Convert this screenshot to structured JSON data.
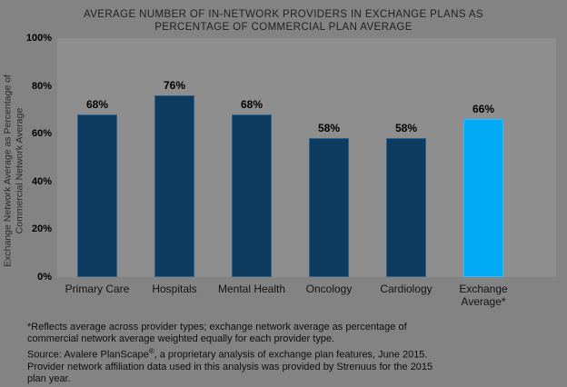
{
  "title": {
    "line1": "AVERAGE NUMBER OF IN-NETWORK PROVIDERS IN EXCHANGE PLANS AS",
    "line2": "PERCENTAGE OF COMMERCIAL PLAN AVERAGE"
  },
  "chart_data": {
    "type": "bar",
    "title": "AVERAGE NUMBER OF IN-NETWORK PROVIDERS IN EXCHANGE PLANS AS PERCENTAGE OF COMMERCIAL PLAN AVERAGE",
    "categories": [
      "Primary Care",
      "Hospitals",
      "Mental Health",
      "Oncology",
      "Cardiology",
      "Exchange Average*"
    ],
    "values": [
      68,
      76,
      68,
      58,
      58,
      66
    ],
    "unit": "%",
    "highlight_index": 5,
    "ylabel": "Exchange Network Average as Percentage of Commercial Network Average",
    "ylabel_lines": [
      "Exchange Network Average as Percentage of",
      "Commercial Network Average"
    ],
    "xlabel": "",
    "ylim": [
      0,
      100
    ],
    "yticks": [
      0,
      20,
      40,
      60,
      80,
      100
    ],
    "ytick_labels": [
      "0%",
      "20%",
      "40%",
      "60%",
      "80%",
      "100%"
    ],
    "grid": false,
    "legend": "none"
  },
  "colors": {
    "background": "#838383",
    "plot_background": "#8e8e8e",
    "bar": "#0d3c60",
    "bar_border": "#2d648e",
    "highlight_bar": "#00aaf5",
    "highlight_border": "#33bcff",
    "text": "#1c1c1c"
  },
  "footnote": {
    "line1": "*Reflects average across provider types; exchange network average as percentage of",
    "line2": "commercial network average weighted equally for each provider type.",
    "line3_pre": "Source: Avalere PlanScape",
    "line3_reg": "®",
    "line3_post": ", a proprietary analysis of exchange plan features, June 2015.",
    "line4": "Provider network affiliation data used in this analysis was provided by Strenuus for the 2015",
    "line5": "plan year."
  }
}
